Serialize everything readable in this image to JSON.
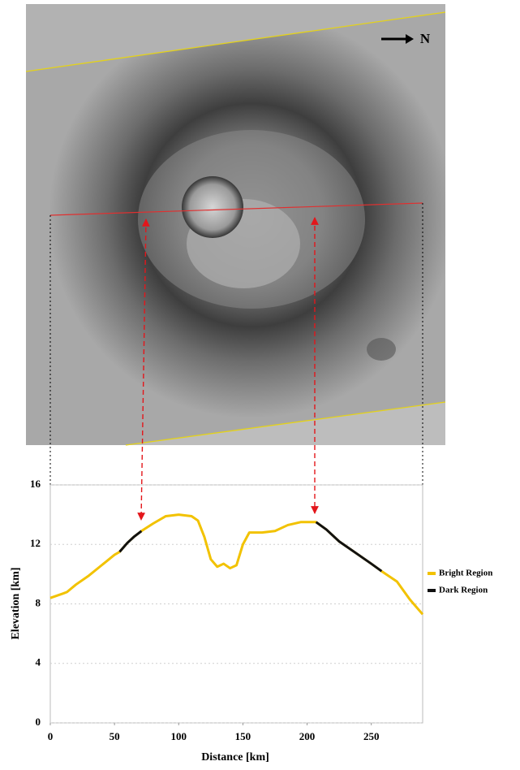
{
  "image": {
    "north_label": "N"
  },
  "chart_data": {
    "type": "line",
    "x_label": "Distance [km]",
    "y_label": "Elevation [km]",
    "x": [
      0,
      10,
      13,
      20,
      30,
      40,
      50,
      54,
      60,
      65,
      71,
      80,
      90,
      100,
      110,
      115,
      120,
      125,
      130,
      135,
      140,
      145,
      150,
      155,
      165,
      175,
      185,
      195,
      207,
      215,
      225,
      240,
      250,
      258,
      270,
      280,
      290
    ],
    "series": [
      {
        "name": "Bright Region",
        "color": "#f2c200",
        "values": [
          8.4,
          8.7,
          8.8,
          9.3,
          9.9,
          10.6,
          11.3,
          11.5,
          12.1,
          12.5,
          12.9,
          13.4,
          13.9,
          14.0,
          13.9,
          13.6,
          12.5,
          11.0,
          10.5,
          10.7,
          10.4,
          10.6,
          12.0,
          12.8,
          12.8,
          12.9,
          13.3,
          13.5,
          13.5,
          13.0,
          12.2,
          11.3,
          10.7,
          10.2,
          9.5,
          8.3,
          7.3
        ]
      },
      {
        "name": "Dark Region",
        "color": "#111111",
        "values": [
          null,
          null,
          null,
          null,
          null,
          null,
          null,
          11.5,
          12.1,
          12.5,
          12.9,
          null,
          null,
          null,
          null,
          null,
          null,
          null,
          null,
          null,
          null,
          null,
          null,
          null,
          null,
          null,
          null,
          null,
          13.5,
          13.0,
          12.2,
          11.3,
          10.7,
          10.2,
          null,
          null,
          null
        ]
      }
    ],
    "xlim": [
      0,
      290
    ],
    "xticks": [
      0,
      50,
      100,
      150,
      200,
      250
    ],
    "ylim": [
      0,
      16
    ],
    "yticks": [
      0,
      4,
      8,
      12,
      16
    ],
    "grid": true
  }
}
